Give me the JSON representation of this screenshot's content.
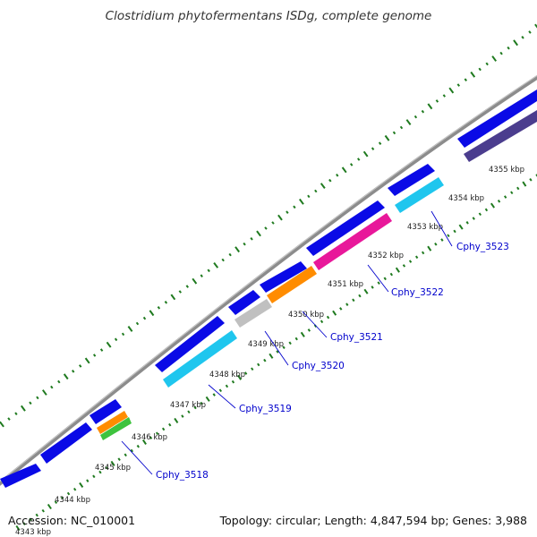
{
  "title": "Clostridium phytofermentans ISDg, complete genome",
  "footer": {
    "accession": "Accession: NC_010001",
    "summary": "Topology: circular; Length: 4,847,594 bp; Genes: 3,988"
  },
  "colors": {
    "backbone": "#8a8a8a",
    "forward_cds": "#0a0ae6",
    "dark_cds": "#4b3d8e",
    "cyan_cds": "#1fc6ee",
    "orange_cds": "#ff8c00",
    "gray_cds": "#c0c0c0",
    "magenta_cds": "#e8189a",
    "green_cds": "#3ec33e",
    "gc_skew": "#1f7a1f",
    "gene_label": "#0000cc"
  },
  "kbp_ticks": [
    "4343 kbp",
    "4344 kbp",
    "4345 kbp",
    "4346 kbp",
    "4347 kbp",
    "4348 kbp",
    "4349 kbp",
    "4350 kbp",
    "4351 kbp",
    "4352 kbp",
    "4353 kbp",
    "4354 kbp",
    "4355 kbp"
  ],
  "gene_labels": [
    "Cphy_3518",
    "Cphy_3519",
    "Cphy_3520",
    "Cphy_3521",
    "Cphy_3522",
    "Cphy_3523"
  ]
}
